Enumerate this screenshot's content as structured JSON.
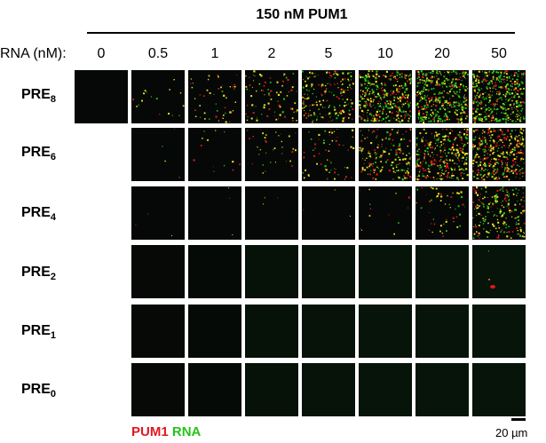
{
  "figure": {
    "title": "150 nM PUM1",
    "rna_axis_label": "RNA (nM):",
    "concentrations": [
      "0",
      "0.5",
      "1",
      "2",
      "5",
      "10",
      "20",
      "50"
    ],
    "rows": [
      {
        "base": "PRE",
        "sub": "8",
        "density": [
          0,
          0.04,
          0.12,
          0.2,
          0.45,
          0.85,
          0.95,
          1.0
        ],
        "green_ratio": [
          0.5,
          0.5,
          0.3,
          0.35,
          0.4,
          0.55,
          0.7,
          0.7
        ],
        "has_zero": true
      },
      {
        "base": "PRE",
        "sub": "6",
        "density": [
          0,
          0.01,
          0.03,
          0.08,
          0.15,
          0.4,
          0.75,
          0.85
        ],
        "green_ratio": [
          0.5,
          0.2,
          0.2,
          0.3,
          0.3,
          0.35,
          0.35,
          0.3
        ],
        "has_zero": false
      },
      {
        "base": "PRE",
        "sub": "4",
        "density": [
          0,
          0.0,
          0.0,
          0.0,
          0.0,
          0.03,
          0.12,
          0.5
        ],
        "green_ratio": [
          0.5,
          0.5,
          0.5,
          0.5,
          0.5,
          0.3,
          0.3,
          0.55
        ],
        "has_zero": false
      },
      {
        "base": "PRE",
        "sub": "2",
        "density": [
          0,
          0.0,
          0.0,
          0.0,
          0.0,
          0.0,
          0.0,
          0.005
        ],
        "green_ratio": [
          0.5,
          0.5,
          0.5,
          0.5,
          0.5,
          0.5,
          0.5,
          0.0
        ],
        "has_zero": false
      },
      {
        "base": "PRE",
        "sub": "1",
        "density": [
          0,
          0.0,
          0.0,
          0.0,
          0.0,
          0.0,
          0.0,
          0.0
        ],
        "green_ratio": [
          0.5,
          0.5,
          0.5,
          0.5,
          0.5,
          0.5,
          0.5,
          0.5
        ],
        "has_zero": false
      },
      {
        "base": "PRE",
        "sub": "0",
        "density": [
          0,
          0.0,
          0.0,
          0.0,
          0.0,
          0.0,
          0.0,
          0.0
        ],
        "green_ratio": [
          0.5,
          0.5,
          0.5,
          0.5,
          0.5,
          0.5,
          0.5,
          0.5
        ],
        "has_zero": false
      }
    ],
    "legend": {
      "pum1": "PUM1",
      "rna": "RNA"
    },
    "scale_text": "20 µm",
    "colors": {
      "pum1": "#e4161d",
      "rna": "#27c318",
      "yellow": "#e8e020",
      "panel_bg": "#050806"
    }
  }
}
